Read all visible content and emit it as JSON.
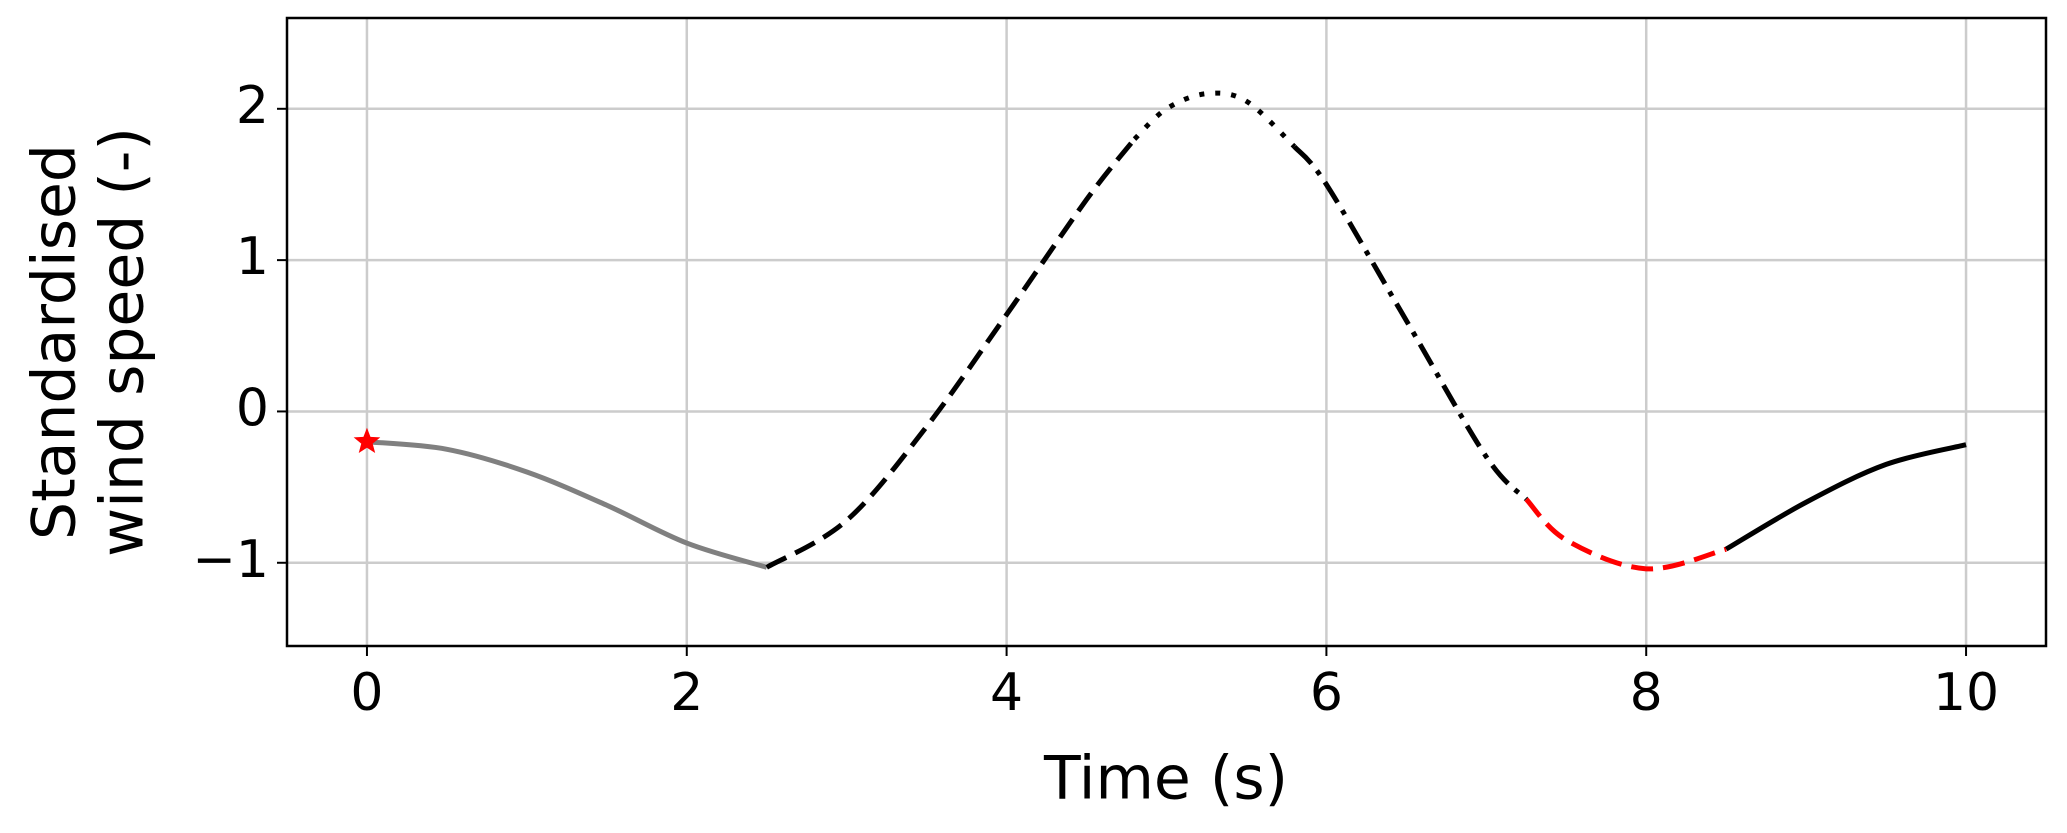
{
  "chart_data": {
    "type": "line",
    "xlabel": "Time (s)",
    "ylabel": [
      "Standardised",
      "wind speed (-)"
    ],
    "xlim": [
      -0.5,
      10.5
    ],
    "ylim": [
      -1.55,
      2.6
    ],
    "xticks": [
      0,
      2,
      4,
      6,
      8,
      10
    ],
    "yticks": [
      {
        "value": -1,
        "label": "−1"
      },
      0,
      1,
      2
    ],
    "grid": true,
    "series": [
      {
        "color": "#808080",
        "style": "solid",
        "x": [
          0,
          0.5,
          1,
          1.5,
          2,
          2.5
        ],
        "values": [
          -0.2,
          -0.25,
          -0.4,
          -0.62,
          -0.87,
          -1.03
        ]
      },
      {
        "color": "#000000",
        "style": "dashed",
        "x": [
          2.5,
          3,
          3.5,
          4,
          4.5,
          4.8
        ],
        "values": [
          -1.03,
          -0.72,
          -0.1,
          0.64,
          1.4,
          1.8
        ]
      },
      {
        "color": "#000000",
        "style": "dotted",
        "x": [
          4.8,
          5,
          5.25,
          5.5,
          5.8
        ],
        "values": [
          1.8,
          2.0,
          2.1,
          2.05,
          1.75
        ]
      },
      {
        "color": "#000000",
        "style": "dashdot",
        "x": [
          5.8,
          6,
          6.5,
          7,
          7.25
        ],
        "values": [
          1.75,
          1.5,
          0.6,
          -0.3,
          -0.58
        ]
      },
      {
        "color": "#ff0000",
        "style": "dashed",
        "x": [
          7.25,
          7.5,
          8,
          8.5
        ],
        "values": [
          -0.58,
          -0.85,
          -1.04,
          -0.91
        ]
      },
      {
        "color": "#000000",
        "style": "solid",
        "x": [
          8.5,
          9,
          9.5,
          10
        ],
        "values": [
          -0.91,
          -0.6,
          -0.35,
          -0.22
        ]
      }
    ],
    "marker": {
      "x": 0,
      "y": -0.2,
      "color": "#ff0000",
      "shape": "star"
    }
  }
}
